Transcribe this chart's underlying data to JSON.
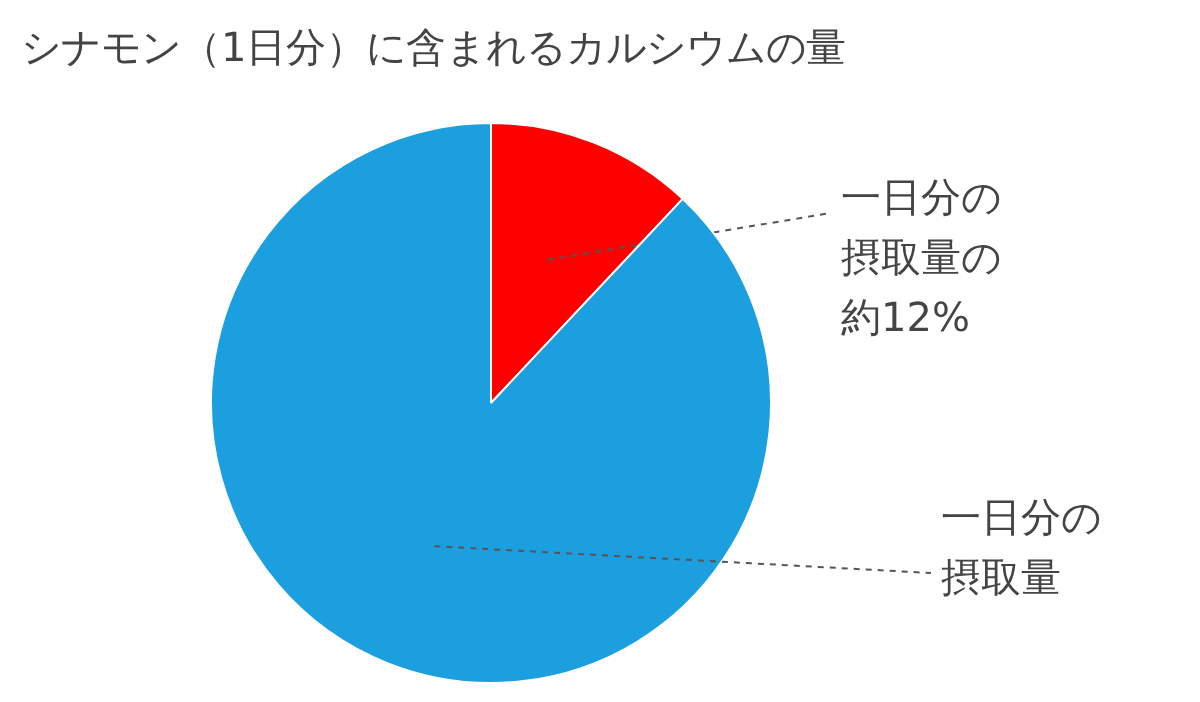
{
  "chart_data": {
    "type": "pie",
    "title": "シナモン（1日分）に含まれるカルシウムの量",
    "categories": [
      "一日分の摂取量の約12%",
      "一日分の摂取量"
    ],
    "values": [
      12,
      88
    ],
    "colors": [
      "#ff0000",
      "#1c9fdf"
    ]
  }
}
